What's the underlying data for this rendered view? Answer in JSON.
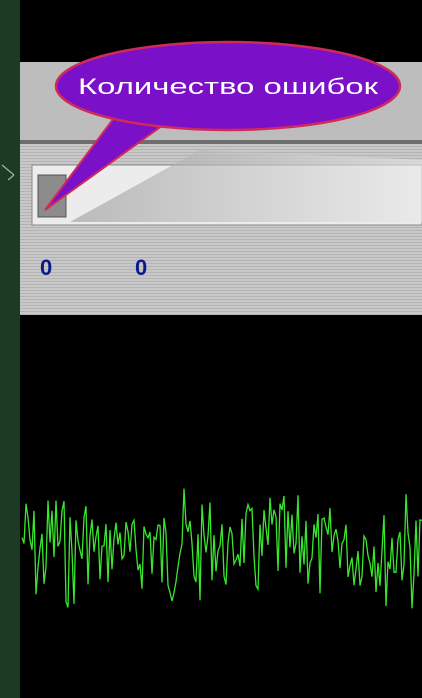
{
  "callout": {
    "text": "Количество ошибок"
  },
  "counters": [
    "0",
    "0"
  ]
}
